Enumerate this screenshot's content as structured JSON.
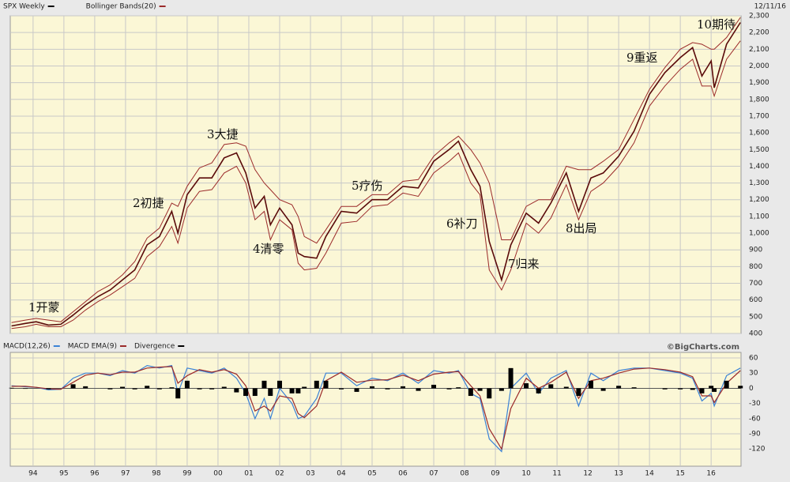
{
  "chart_data": [
    {
      "type": "line",
      "date": "12/11/16",
      "x": [
        1993.3,
        1993.75,
        1994.1,
        1994.5,
        1994.9,
        1995.3,
        1995.7,
        1996.1,
        1996.5,
        1996.9,
        1997.3,
        1997.7,
        1998.1,
        1998.5,
        1998.7,
        1999.0,
        1999.4,
        1999.8,
        2000.2,
        2000.6,
        2000.9,
        2001.2,
        2001.5,
        2001.7,
        2002.0,
        2002.4,
        2002.6,
        2002.8,
        2003.2,
        2003.5,
        2004.0,
        2004.5,
        2005.0,
        2005.5,
        2006.0,
        2006.5,
        2007.0,
        2007.5,
        2007.8,
        2008.2,
        2008.5,
        2008.8,
        2009.2,
        2009.5,
        2010.0,
        2010.4,
        2010.8,
        2011.3,
        2011.7,
        2012.1,
        2012.5,
        2013.0,
        2013.5,
        2014.0,
        2014.5,
        2015.0,
        2015.4,
        2015.7,
        2016.0,
        2016.1,
        2016.5,
        2016.95
      ],
      "series": [
        {
          "name": "SPX Weekly",
          "color": "#5a0a0a",
          "legend_color": "#000000",
          "values": [
            445,
            460,
            470,
            450,
            455,
            510,
            570,
            620,
            660,
            720,
            780,
            930,
            980,
            1130,
            1000,
            1230,
            1330,
            1330,
            1450,
            1480,
            1360,
            1150,
            1220,
            1050,
            1150,
            1050,
            880,
            860,
            850,
            980,
            1130,
            1120,
            1200,
            1200,
            1280,
            1270,
            1430,
            1500,
            1550,
            1380,
            1280,
            950,
            720,
            930,
            1120,
            1060,
            1180,
            1360,
            1130,
            1330,
            1360,
            1460,
            1610,
            1830,
            1960,
            2050,
            2110,
            1940,
            2030,
            1870,
            2130,
            2260
          ]
        },
        {
          "name": "Bollinger Bands(20)",
          "color": "#9b2a2a",
          "kind": "band",
          "upper": [
            465,
            480,
            490,
            480,
            470,
            530,
            590,
            650,
            690,
            750,
            830,
            970,
            1030,
            1180,
            1160,
            1280,
            1390,
            1420,
            1530,
            1540,
            1520,
            1380,
            1300,
            1260,
            1200,
            1170,
            1100,
            980,
            940,
            1020,
            1160,
            1160,
            1230,
            1230,
            1310,
            1320,
            1460,
            1540,
            1580,
            1500,
            1420,
            1300,
            960,
            960,
            1160,
            1200,
            1200,
            1400,
            1380,
            1380,
            1430,
            1500,
            1680,
            1860,
            1990,
            2100,
            2140,
            2130,
            2100,
            2100,
            2170,
            2290
          ],
          "lower": [
            430,
            440,
            455,
            440,
            440,
            480,
            540,
            590,
            630,
            680,
            730,
            860,
            920,
            1040,
            940,
            1150,
            1250,
            1260,
            1360,
            1400,
            1300,
            1080,
            1130,
            960,
            1080,
            1020,
            820,
            780,
            790,
            880,
            1060,
            1070,
            1160,
            1170,
            1240,
            1220,
            1360,
            1430,
            1480,
            1300,
            1230,
            780,
            660,
            780,
            1060,
            1000,
            1090,
            1290,
            1080,
            1250,
            1300,
            1400,
            1540,
            1760,
            1880,
            1980,
            2040,
            1880,
            1880,
            1820,
            2040,
            2150
          ]
        }
      ],
      "xlim": [
        1993.26,
        2016.97
      ],
      "ylim": [
        400,
        2300
      ],
      "yticks": [
        400,
        500,
        600,
        700,
        800,
        900,
        {
          "value": 1000,
          "label": "1,000"
        },
        {
          "value": 1100,
          "label": "1,100"
        },
        {
          "value": 1200,
          "label": "1,200"
        },
        {
          "value": 1300,
          "label": "1,300"
        },
        {
          "value": 1400,
          "label": "1,400"
        },
        {
          "value": 1500,
          "label": "1,500"
        },
        {
          "value": 1600,
          "label": "1,600"
        },
        {
          "value": 1700,
          "label": "1,700"
        },
        {
          "value": 1800,
          "label": "1,800"
        },
        {
          "value": 1900,
          "label": "1,900"
        },
        {
          "value": 2000,
          "label": "2,000"
        },
        {
          "value": 2100,
          "label": "2,100"
        },
        {
          "value": 2200,
          "label": "2,200"
        },
        {
          "value": 2300,
          "label": "2,300"
        }
      ],
      "grid": true,
      "annotations": [
        "1开蒙",
        "2初捷",
        "3大捷",
        "4清零",
        "5疗伤",
        "6补刀",
        "7归来",
        "8出局",
        "9重返",
        "10期待"
      ]
    },
    {
      "type": "line",
      "source": "©BigCharts.com",
      "x": [
        1993.3,
        1993.75,
        1994.1,
        1994.5,
        1994.9,
        1995.3,
        1995.7,
        1996.1,
        1996.5,
        1996.9,
        1997.3,
        1997.7,
        1998.1,
        1998.5,
        1998.7,
        1999.0,
        1999.4,
        1999.8,
        2000.2,
        2000.6,
        2000.9,
        2001.2,
        2001.5,
        2001.7,
        2002.0,
        2002.4,
        2002.6,
        2002.8,
        2003.2,
        2003.5,
        2004.0,
        2004.5,
        2005.0,
        2005.5,
        2006.0,
        2006.5,
        2007.0,
        2007.5,
        2007.8,
        2008.2,
        2008.5,
        2008.8,
        2009.2,
        2009.5,
        2010.0,
        2010.4,
        2010.8,
        2011.3,
        2011.7,
        2012.1,
        2012.5,
        2013.0,
        2013.5,
        2014.0,
        2014.5,
        2015.0,
        2015.4,
        2015.7,
        2016.0,
        2016.1,
        2016.5,
        2016.95
      ],
      "series": [
        {
          "name": "MACD(12,26)",
          "color": "#3b82d6",
          "values": [
            5,
            3,
            2,
            -3,
            -2,
            20,
            30,
            30,
            25,
            35,
            30,
            45,
            40,
            45,
            -10,
            40,
            35,
            30,
            40,
            20,
            -10,
            -60,
            -20,
            -60,
            0,
            -30,
            -60,
            -55,
            -20,
            30,
            30,
            5,
            20,
            15,
            30,
            10,
            35,
            30,
            35,
            -10,
            -20,
            -100,
            -125,
            0,
            30,
            -10,
            20,
            35,
            -35,
            30,
            15,
            35,
            40,
            40,
            35,
            30,
            20,
            -25,
            -10,
            -35,
            25,
            40
          ]
        },
        {
          "name": "MACD EMA(9)",
          "color": "#9b2a2a",
          "values": [
            4,
            4,
            2,
            -1,
            -2,
            12,
            26,
            30,
            27,
            32,
            32,
            40,
            42,
            43,
            10,
            25,
            37,
            32,
            37,
            28,
            5,
            -45,
            -35,
            -45,
            -15,
            -20,
            -50,
            -58,
            -35,
            15,
            32,
            12,
            16,
            17,
            26,
            15,
            28,
            32,
            33,
            5,
            -15,
            -80,
            -120,
            -40,
            20,
            0,
            12,
            32,
            -20,
            15,
            20,
            30,
            38,
            40,
            37,
            32,
            23,
            -15,
            -15,
            -28,
            10,
            35
          ]
        },
        {
          "name": "Divergence",
          "color": "#000000",
          "kind": "bar",
          "values": [
            1,
            -1,
            0,
            -2,
            0,
            8,
            4,
            0,
            -2,
            3,
            -2,
            5,
            -2,
            2,
            -20,
            15,
            -2,
            -2,
            3,
            -8,
            -15,
            -15,
            15,
            -15,
            15,
            -10,
            -10,
            3,
            15,
            15,
            -2,
            -7,
            4,
            -2,
            4,
            -5,
            7,
            -2,
            2,
            -15,
            -5,
            -20,
            -5,
            40,
            10,
            -10,
            8,
            3,
            -15,
            15,
            -5,
            5,
            2,
            0,
            -2,
            -2,
            -3,
            -10,
            5,
            -7,
            15,
            5
          ]
        }
      ],
      "xlim": [
        1993.26,
        2016.97
      ],
      "ylim": [
        -154,
        71
      ],
      "yticks": [
        60,
        30,
        0,
        -30,
        -60,
        -90,
        -120
      ],
      "xticks": [
        {
          "value": 1994,
          "label": "94"
        },
        {
          "value": 1995,
          "label": "95"
        },
        {
          "value": 1996,
          "label": "96"
        },
        {
          "value": 1997,
          "label": "97"
        },
        {
          "value": 1998,
          "label": "98"
        },
        {
          "value": 1999,
          "label": "99"
        },
        {
          "value": 2000,
          "label": "00"
        },
        {
          "value": 2001,
          "label": "01"
        },
        {
          "value": 2002,
          "label": "02"
        },
        {
          "value": 2003,
          "label": "03"
        },
        {
          "value": 2004,
          "label": "04"
        },
        {
          "value": 2005,
          "label": "05"
        },
        {
          "value": 2006,
          "label": "06"
        },
        {
          "value": 2007,
          "label": "07"
        },
        {
          "value": 2008,
          "label": "08"
        },
        {
          "value": 2009,
          "label": "09"
        },
        {
          "value": 2010,
          "label": "10"
        },
        {
          "value": 2011,
          "label": "11"
        },
        {
          "value": 2012,
          "label": "12"
        },
        {
          "value": 2013,
          "label": "13"
        },
        {
          "value": 2014,
          "label": "14"
        },
        {
          "value": 2015,
          "label": "15"
        },
        {
          "value": 2016,
          "label": "16"
        }
      ],
      "grid": true
    }
  ]
}
